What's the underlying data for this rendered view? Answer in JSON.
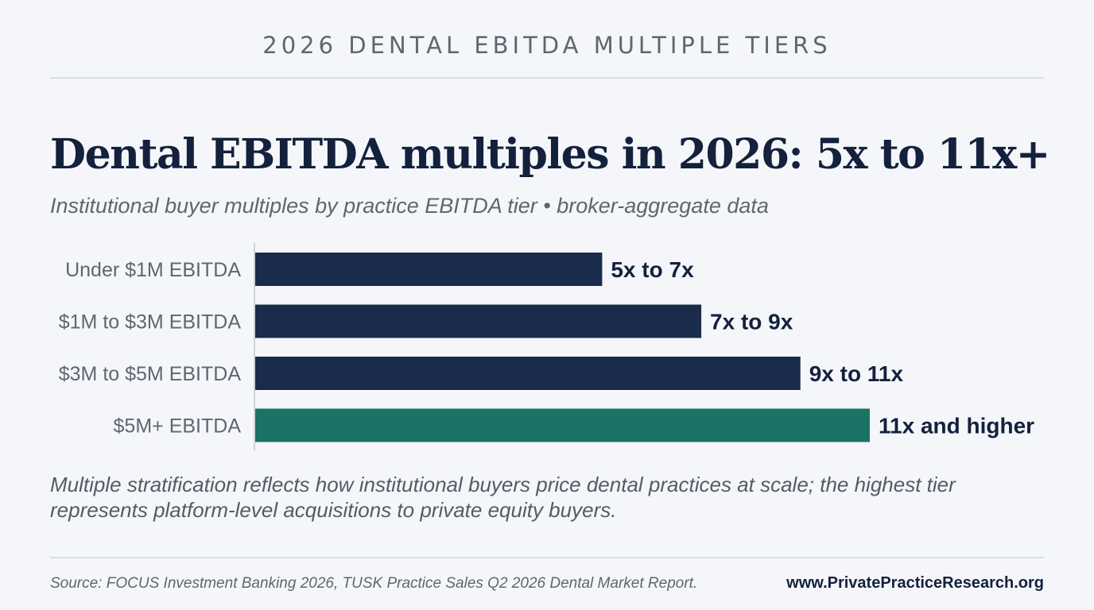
{
  "header": {
    "kicker": "2026 DENTAL EBITDA MULTIPLE TIERS",
    "title": "Dental EBITDA multiples in 2026: 5x to 11x+",
    "subtitle": "Institutional buyer multiples by practice EBITDA tier • broker-aggregate data"
  },
  "chart_data": {
    "type": "bar",
    "orientation": "horizontal",
    "title": "",
    "xlabel": "",
    "ylabel": "",
    "categories": [
      "Under $1M EBITDA",
      "$1M to $3M EBITDA",
      "$3M to $5M EBITDA",
      "$5M+ EBITDA"
    ],
    "values": [
      7,
      9,
      11,
      12.4
    ],
    "data_labels": [
      "5x to 7x",
      "7x to 9x",
      "9x to 11x",
      "11x and higher"
    ],
    "xlim": [
      0,
      12.4
    ],
    "grid": false,
    "legend": "none",
    "colors": {
      "default": "#1a2b4c",
      "highlight": "#1b7365",
      "label": "#14213d",
      "category_label": "#5f6671",
      "axis": "#d0d4da"
    },
    "highlight_index": 3
  },
  "footer": {
    "note": "Multiple stratification reflects how institutional buyers price dental practices at scale; the highest tier represents platform-level acquisitions to private equity buyers.",
    "source": "Source: FOCUS Investment Banking 2026, TUSK Practice Sales Q2 2026 Dental Market Report.",
    "website": "www.PrivatePracticeResearch.org"
  }
}
